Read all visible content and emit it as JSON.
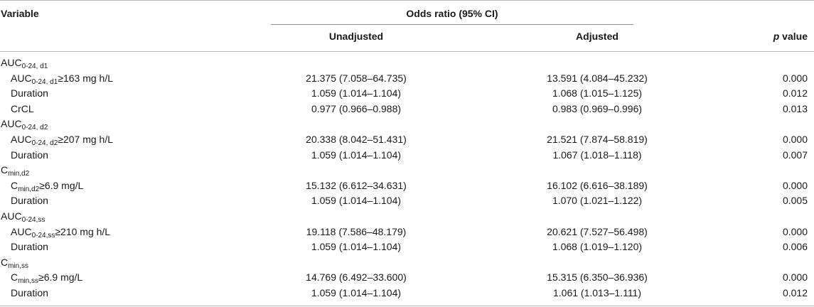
{
  "header": {
    "variable": "Variable",
    "odds_ratio": "Odds ratio (95% CI)",
    "unadjusted": "Unadjusted",
    "adjusted": "Adjusted",
    "p_italic": "p",
    "p_rest": " value"
  },
  "rows": [
    {
      "type": "group",
      "var_main": "AUC",
      "var_sub": "0-24, d1",
      "var_tail": ""
    },
    {
      "type": "item",
      "var_main": "AUC",
      "var_sub": "0-24, d1",
      "var_tail": "≥163 mg h/L",
      "unadjusted": "21.375 (7.058–64.735)",
      "adjusted": "13.591 (4.084–45.232)",
      "p": "0.000"
    },
    {
      "type": "item",
      "var_main": "Duration",
      "var_sub": "",
      "var_tail": "",
      "unadjusted": "1.059 (1.014–1.104)",
      "adjusted": "1.068 (1.015–1.125)",
      "p": "0.012"
    },
    {
      "type": "item",
      "var_main": "CrCL",
      "var_sub": "",
      "var_tail": "",
      "unadjusted": "0.977 (0.966–0.988)",
      "adjusted": "0.983 (0.969–0.996)",
      "p": "0.013"
    },
    {
      "type": "group",
      "var_main": "AUC",
      "var_sub": "0-24, d2",
      "var_tail": ""
    },
    {
      "type": "item",
      "var_main": "AUC",
      "var_sub": "0-24, d2",
      "var_tail": "≥207 mg h/L",
      "unadjusted": "20.338 (8.042–51.431)",
      "adjusted": "21.521 (7.874–58.819)",
      "p": "0.000"
    },
    {
      "type": "item",
      "var_main": "Duration",
      "var_sub": "",
      "var_tail": "",
      "unadjusted": "1.059 (1.014–1.104)",
      "adjusted": "1.067 (1.018–1.118)",
      "p": "0.007"
    },
    {
      "type": "group",
      "var_main": "C",
      "var_sub": "min,d2",
      "var_tail": ""
    },
    {
      "type": "item",
      "var_main": "C",
      "var_sub": "min,d2",
      "var_tail": "≥6.9 mg/L",
      "unadjusted": "15.132 (6.612–34.631)",
      "adjusted": "16.102 (6.616–38.189)",
      "p": "0.000"
    },
    {
      "type": "item",
      "var_main": "Duration",
      "var_sub": "",
      "var_tail": "",
      "unadjusted": "1.059 (1.014–1.104)",
      "adjusted": "1.070 (1.021–1.122)",
      "p": "0.005"
    },
    {
      "type": "group",
      "var_main": "AUC",
      "var_sub": "0-24,ss",
      "var_tail": ""
    },
    {
      "type": "item",
      "var_main": "AUC",
      "var_sub": "0-24,ss",
      "var_tail": "≥210 mg h/L",
      "unadjusted": "19.118 (7.586–48.179)",
      "adjusted": "20.621 (7.527–56.498)",
      "p": "0.000"
    },
    {
      "type": "item",
      "var_main": "Duration",
      "var_sub": "",
      "var_tail": "",
      "unadjusted": "1.059 (1.014–1.104)",
      "adjusted": "1.068 (1.019–1.120)",
      "p": "0.006"
    },
    {
      "type": "group",
      "var_main": "C",
      "var_sub": "min,ss",
      "var_tail": ""
    },
    {
      "type": "item",
      "var_main": "C",
      "var_sub": "min,ss",
      "var_tail": "≥6.9 mg/L",
      "unadjusted": "14.769 (6.492–33.600)",
      "adjusted": "15.315 (6.350–36.936)",
      "p": "0.000"
    },
    {
      "type": "item",
      "var_main": "Duration",
      "var_sub": "",
      "var_tail": "",
      "unadjusted": "1.059 (1.014–1.104)",
      "adjusted": "1.061 (1.013–1.111)",
      "p": "0.012"
    }
  ]
}
